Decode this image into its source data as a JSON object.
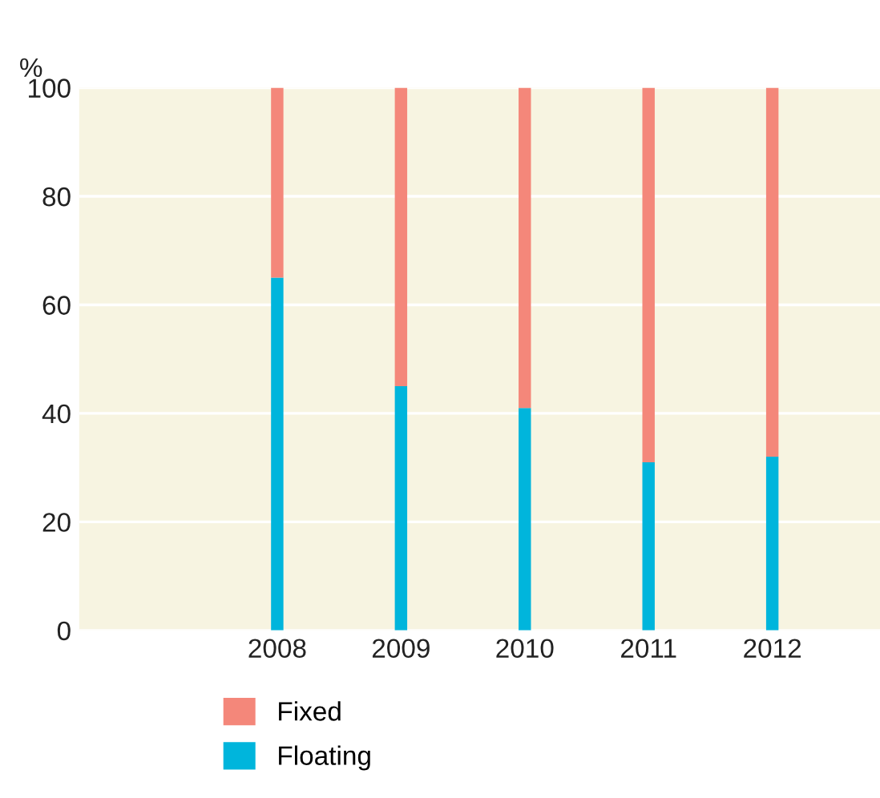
{
  "chart_data": {
    "type": "bar",
    "stacked": true,
    "ylabel": "%",
    "categories": [
      "2008",
      "2009",
      "2010",
      "2011",
      "2012"
    ],
    "series": [
      {
        "name": "Floating",
        "color": "#00b5dc",
        "values": [
          65,
          45,
          41,
          31,
          32
        ]
      },
      {
        "name": "Fixed",
        "color": "#f4877a",
        "values": [
          35,
          55,
          59,
          69,
          68
        ]
      }
    ],
    "ylim": [
      0,
      100
    ],
    "yticks": [
      0,
      20,
      40,
      60,
      80,
      100
    ],
    "grid": "y",
    "legend": "bottom"
  }
}
